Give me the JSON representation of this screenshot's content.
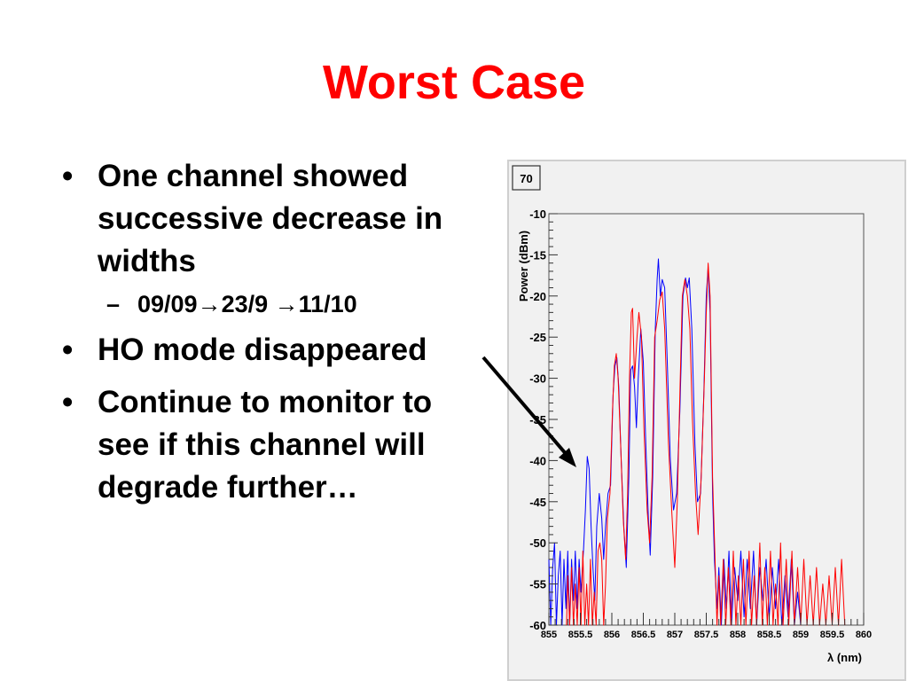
{
  "slide": {
    "title": "Worst Case",
    "bullets": [
      {
        "text_lines": [
          "One channel showed",
          "successive decrease in",
          "widths"
        ],
        "sub": [
          "09/09→23/9 →11/10"
        ]
      },
      {
        "text_lines": [
          "HO mode disappeared"
        ]
      },
      {
        "text_lines": [
          "Continue to monitor to",
          "see if this channel will",
          "degrade further…"
        ]
      }
    ]
  },
  "chart_data": {
    "type": "line",
    "title": "70",
    "xlabel": "λ (nm)",
    "ylabel": "Power (dBm)",
    "xlim": [
      855,
      860
    ],
    "ylim": [
      -60,
      -10
    ],
    "xticks": [
      "855",
      "855.5",
      "856",
      "856.5",
      "857",
      "857.5",
      "858",
      "858.5",
      "859",
      "859.5",
      "860"
    ],
    "yticks": [
      "-10",
      "-15",
      "-20",
      "-25",
      "-30",
      "-35",
      "-40",
      "-45",
      "-50",
      "-55",
      "-60"
    ],
    "grid": false,
    "colors": {
      "blue": "#0000ff",
      "red": "#ff0000",
      "arrow": "#000000",
      "frame": "#f1f1f1"
    },
    "series": [
      {
        "color": "#0000ff",
        "points": [
          [
            855,
            -52
          ],
          [
            855.03,
            -60
          ],
          [
            855.06,
            -53
          ],
          [
            855.09,
            -50
          ],
          [
            855.12,
            -60
          ],
          [
            855.15,
            -54
          ],
          [
            855.18,
            -51
          ],
          [
            855.21,
            -60
          ],
          [
            855.24,
            -52
          ],
          [
            855.27,
            -58
          ],
          [
            855.3,
            -51
          ],
          [
            855.33,
            -60
          ],
          [
            855.36,
            -52
          ],
          [
            855.39,
            -57
          ],
          [
            855.42,
            -51
          ],
          [
            855.45,
            -58
          ],
          [
            855.48,
            -52
          ],
          [
            855.51,
            -56
          ],
          [
            855.55,
            -51
          ],
          [
            855.58,
            -46
          ],
          [
            855.61,
            -39.5
          ],
          [
            855.64,
            -41
          ],
          [
            855.67,
            -48
          ],
          [
            855.7,
            -53
          ],
          [
            855.73,
            -57
          ],
          [
            855.76,
            -48
          ],
          [
            855.8,
            -44
          ],
          [
            855.84,
            -47
          ],
          [
            855.87,
            -52
          ],
          [
            855.9,
            -48
          ],
          [
            855.94,
            -44
          ],
          [
            855.98,
            -43
          ],
          [
            856.02,
            -32
          ],
          [
            856.05,
            -28.5
          ],
          [
            856.08,
            -27.5
          ],
          [
            856.11,
            -31
          ],
          [
            856.15,
            -40
          ],
          [
            856.19,
            -48
          ],
          [
            856.23,
            -53
          ],
          [
            856.27,
            -42
          ],
          [
            856.3,
            -29
          ],
          [
            856.33,
            -28.5
          ],
          [
            856.36,
            -31
          ],
          [
            856.39,
            -36
          ],
          [
            856.42,
            -30
          ],
          [
            856.46,
            -24
          ],
          [
            856.5,
            -28
          ],
          [
            856.54,
            -38
          ],
          [
            856.58,
            -47
          ],
          [
            856.61,
            -51.5
          ],
          [
            856.65,
            -42
          ],
          [
            856.69,
            -24
          ],
          [
            856.72,
            -18
          ],
          [
            856.74,
            -15.5
          ],
          [
            856.77,
            -20
          ],
          [
            856.8,
            -18
          ],
          [
            856.84,
            -19
          ],
          [
            856.88,
            -28
          ],
          [
            856.93,
            -40
          ],
          [
            856.98,
            -46
          ],
          [
            857.03,
            -44
          ],
          [
            857.08,
            -34
          ],
          [
            857.13,
            -20
          ],
          [
            857.17,
            -17.8
          ],
          [
            857.2,
            -19
          ],
          [
            857.23,
            -17.8
          ],
          [
            857.27,
            -24
          ],
          [
            857.32,
            -38
          ],
          [
            857.36,
            -45
          ],
          [
            857.41,
            -44
          ],
          [
            857.46,
            -32
          ],
          [
            857.5,
            -20
          ],
          [
            857.53,
            -16.5
          ],
          [
            857.56,
            -22
          ],
          [
            857.6,
            -44
          ],
          [
            857.63,
            -52
          ],
          [
            857.67,
            -58
          ],
          [
            857.7,
            -53
          ],
          [
            857.74,
            -60
          ],
          [
            857.78,
            -52
          ],
          [
            857.82,
            -58
          ],
          [
            857.86,
            -51
          ],
          [
            857.9,
            -60
          ],
          [
            857.95,
            -53
          ],
          [
            858,
            -57
          ],
          [
            858.05,
            -51
          ],
          [
            858.1,
            -59
          ],
          [
            858.15,
            -52
          ],
          [
            858.2,
            -58
          ],
          [
            858.25,
            -51
          ],
          [
            858.3,
            -60
          ],
          [
            858.35,
            -53
          ],
          [
            858.4,
            -57
          ],
          [
            858.45,
            -52
          ],
          [
            858.5,
            -59
          ],
          [
            858.55,
            -53
          ],
          [
            858.6,
            -58
          ],
          [
            858.65,
            -52
          ],
          [
            858.7,
            -60
          ],
          [
            858.75,
            -54
          ],
          [
            858.8,
            -59
          ],
          [
            858.85,
            -52
          ],
          [
            858.9,
            -60
          ],
          [
            858.95,
            -56
          ],
          [
            859,
            -60
          ]
        ]
      },
      {
        "color": "#ff0000",
        "points": [
          [
            855.28,
            -60
          ],
          [
            855.3,
            -54
          ],
          [
            855.33,
            -60
          ],
          [
            855.36,
            -53
          ],
          [
            855.39,
            -60
          ],
          [
            855.42,
            -55
          ],
          [
            855.45,
            -60
          ],
          [
            855.48,
            -53
          ],
          [
            855.51,
            -60
          ],
          [
            855.54,
            -51
          ],
          [
            855.57,
            -60
          ],
          [
            855.6,
            -55
          ],
          [
            855.63,
            -60
          ],
          [
            855.66,
            -52
          ],
          [
            855.69,
            -60
          ],
          [
            855.72,
            -56
          ],
          [
            855.75,
            -60
          ],
          [
            855.78,
            -51
          ],
          [
            855.81,
            -50
          ],
          [
            855.84,
            -52
          ],
          [
            855.87,
            -60
          ],
          [
            855.9,
            -55
          ],
          [
            855.93,
            -47
          ],
          [
            855.97,
            -44
          ],
          [
            856.01,
            -34
          ],
          [
            856.04,
            -28.5
          ],
          [
            856.07,
            -27
          ],
          [
            856.1,
            -30
          ],
          [
            856.14,
            -38
          ],
          [
            856.18,
            -47
          ],
          [
            856.22,
            -52
          ],
          [
            856.25,
            -44
          ],
          [
            856.28,
            -30
          ],
          [
            856.31,
            -22
          ],
          [
            856.33,
            -21.5
          ],
          [
            856.36,
            -30
          ],
          [
            856.4,
            -25
          ],
          [
            856.43,
            -22
          ],
          [
            856.47,
            -25
          ],
          [
            856.51,
            -36
          ],
          [
            856.56,
            -46
          ],
          [
            856.6,
            -50
          ],
          [
            856.64,
            -42
          ],
          [
            856.68,
            -25
          ],
          [
            856.72,
            -23
          ],
          [
            856.76,
            -20.5
          ],
          [
            856.8,
            -19.5
          ],
          [
            856.84,
            -24
          ],
          [
            856.9,
            -38
          ],
          [
            856.95,
            -46
          ],
          [
            857,
            -53
          ],
          [
            857.04,
            -45
          ],
          [
            857.08,
            -32
          ],
          [
            857.12,
            -20
          ],
          [
            857.16,
            -18
          ],
          [
            857.2,
            -20
          ],
          [
            857.24,
            -24
          ],
          [
            857.28,
            -35
          ],
          [
            857.33,
            -44
          ],
          [
            857.37,
            -49
          ],
          [
            857.42,
            -42
          ],
          [
            857.47,
            -30
          ],
          [
            857.5,
            -22
          ],
          [
            857.53,
            -16
          ],
          [
            857.56,
            -20
          ],
          [
            857.6,
            -42
          ],
          [
            857.64,
            -52
          ],
          [
            857.67,
            -60
          ],
          [
            857.7,
            -54
          ],
          [
            857.73,
            -60
          ],
          [
            857.77,
            -52
          ],
          [
            857.81,
            -60
          ],
          [
            857.85,
            -53
          ],
          [
            857.89,
            -60
          ],
          [
            857.93,
            -51
          ],
          [
            857.97,
            -60
          ],
          [
            858.01,
            -54
          ],
          [
            858.05,
            -60
          ],
          [
            858.09,
            -52
          ],
          [
            858.13,
            -60
          ],
          [
            858.18,
            -51
          ],
          [
            858.22,
            -60
          ],
          [
            858.26,
            -54
          ],
          [
            858.3,
            -60
          ],
          [
            858.35,
            -50
          ],
          [
            858.39,
            -60
          ],
          [
            858.43,
            -53
          ],
          [
            858.47,
            -60
          ],
          [
            858.52,
            -51
          ],
          [
            858.56,
            -60
          ],
          [
            858.6,
            -55
          ],
          [
            858.64,
            -60
          ],
          [
            858.68,
            -50
          ],
          [
            858.72,
            -60
          ],
          [
            858.77,
            -52
          ],
          [
            858.81,
            -60
          ],
          [
            858.86,
            -51
          ],
          [
            858.9,
            -60
          ],
          [
            858.95,
            -53
          ],
          [
            859,
            -60
          ],
          [
            859.05,
            -52
          ],
          [
            859.1,
            -60
          ],
          [
            859.15,
            -54
          ],
          [
            859.2,
            -60
          ],
          [
            859.25,
            -53
          ],
          [
            859.3,
            -60
          ],
          [
            859.35,
            -55
          ],
          [
            859.4,
            -60
          ],
          [
            859.45,
            -54
          ],
          [
            859.5,
            -60
          ],
          [
            859.55,
            -53
          ],
          [
            859.6,
            -60
          ],
          [
            859.65,
            -52
          ],
          [
            859.7,
            -60
          ]
        ]
      }
    ]
  }
}
